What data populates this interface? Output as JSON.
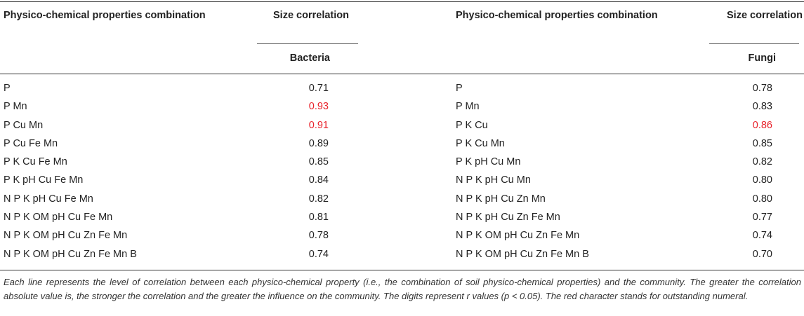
{
  "header": {
    "left_property_label": "Physico-chemical properties combination",
    "left_size_label": "Size correlation",
    "left_group": "Bacteria",
    "right_property_label": "Physico-chemical properties combination",
    "right_size_label": "Size correlation",
    "right_group": "Fungi"
  },
  "highlight_color": "#e8212a",
  "rows": [
    {
      "left_prop": "P",
      "left_val": "0.71",
      "left_hl": false,
      "right_prop": "P",
      "right_val": "0.78",
      "right_hl": false
    },
    {
      "left_prop": "P Mn",
      "left_val": "0.93",
      "left_hl": true,
      "right_prop": "P Mn",
      "right_val": "0.83",
      "right_hl": false
    },
    {
      "left_prop": "P Cu Mn",
      "left_val": "0.91",
      "left_hl": true,
      "right_prop": "P K Cu",
      "right_val": "0.86",
      "right_hl": true
    },
    {
      "left_prop": "P Cu Fe Mn",
      "left_val": "0.89",
      "left_hl": false,
      "right_prop": "P K Cu Mn",
      "right_val": "0.85",
      "right_hl": false
    },
    {
      "left_prop": "P K Cu Fe Mn",
      "left_val": "0.85",
      "left_hl": false,
      "right_prop": "P K pH Cu Mn",
      "right_val": "0.82",
      "right_hl": false
    },
    {
      "left_prop": "P K pH Cu Fe Mn",
      "left_val": "0.84",
      "left_hl": false,
      "right_prop": "N P K pH Cu Mn",
      "right_val": "0.80",
      "right_hl": false
    },
    {
      "left_prop": "N P K pH Cu Fe Mn",
      "left_val": "0.82",
      "left_hl": false,
      "right_prop": "N P K pH Cu Zn Mn",
      "right_val": "0.80",
      "right_hl": false
    },
    {
      "left_prop": "N P K OM pH Cu Fe Mn",
      "left_val": "0.81",
      "left_hl": false,
      "right_prop": "N P K pH Cu Zn Fe Mn",
      "right_val": "0.77",
      "right_hl": false
    },
    {
      "left_prop": "N P K OM pH Cu Zn Fe Mn",
      "left_val": "0.78",
      "left_hl": false,
      "right_prop": "N P K OM pH Cu Zn Fe Mn",
      "right_val": "0.74",
      "right_hl": false
    },
    {
      "left_prop": "N P K OM pH Cu Zn Fe Mn B",
      "left_val": "0.74",
      "left_hl": false,
      "right_prop": "N P K OM pH Cu Zn Fe Mn B",
      "right_val": "0.70",
      "right_hl": false
    }
  ],
  "footnote": "Each line represents the level of correlation between each physico-chemical property (i.e., the combination of soil physico-chemical properties) and the community. The greater the correlation absolute value is, the stronger the correlation and the greater the influence on the community. The digits represent r values (p < 0.05). The red character stands for outstanding numeral."
}
